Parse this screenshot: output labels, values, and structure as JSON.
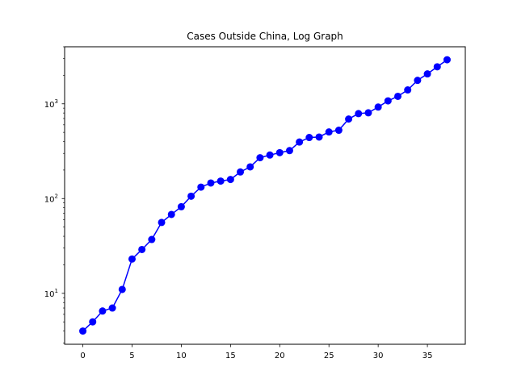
{
  "chart_data": {
    "type": "line",
    "title": "Cases Outside China, Log Graph",
    "xlabel": "",
    "ylabel": "",
    "xlim": [
      -1.85,
      38.85
    ],
    "ylim": [
      2.9,
      4000
    ],
    "yscale": "log",
    "grid": false,
    "x_ticks": [
      0,
      5,
      10,
      15,
      20,
      25,
      30,
      35
    ],
    "x_tick_labels": [
      "0",
      "5",
      "10",
      "15",
      "20",
      "25",
      "30",
      "35"
    ],
    "y_ticks": [
      10,
      100,
      1000
    ],
    "y_tick_labels": [
      {
        "base": "10",
        "exp": "1"
      },
      {
        "base": "10",
        "exp": "2"
      },
      {
        "base": "10",
        "exp": "3"
      }
    ],
    "series": [
      {
        "color": "#0000ff",
        "marker": "circle",
        "x": [
          0,
          1,
          2,
          3,
          4,
          5,
          6,
          7,
          8,
          9,
          10,
          11,
          12,
          13,
          14,
          15,
          16,
          17,
          18,
          19,
          20,
          21,
          22,
          23,
          24,
          25,
          26,
          27,
          28,
          29,
          30,
          31,
          32,
          33,
          34,
          35,
          36,
          37
        ],
        "values": [
          4,
          5,
          6.5,
          7,
          11,
          23,
          29,
          37,
          56,
          68,
          82,
          106,
          132,
          146,
          153,
          159,
          191,
          216,
          270,
          288,
          305,
          321,
          395,
          441,
          446,
          505,
          526,
          691,
          788,
          804,
          924,
          1074,
          1200,
          1402,
          1769,
          2069,
          2459,
          2918
        ]
      }
    ]
  }
}
